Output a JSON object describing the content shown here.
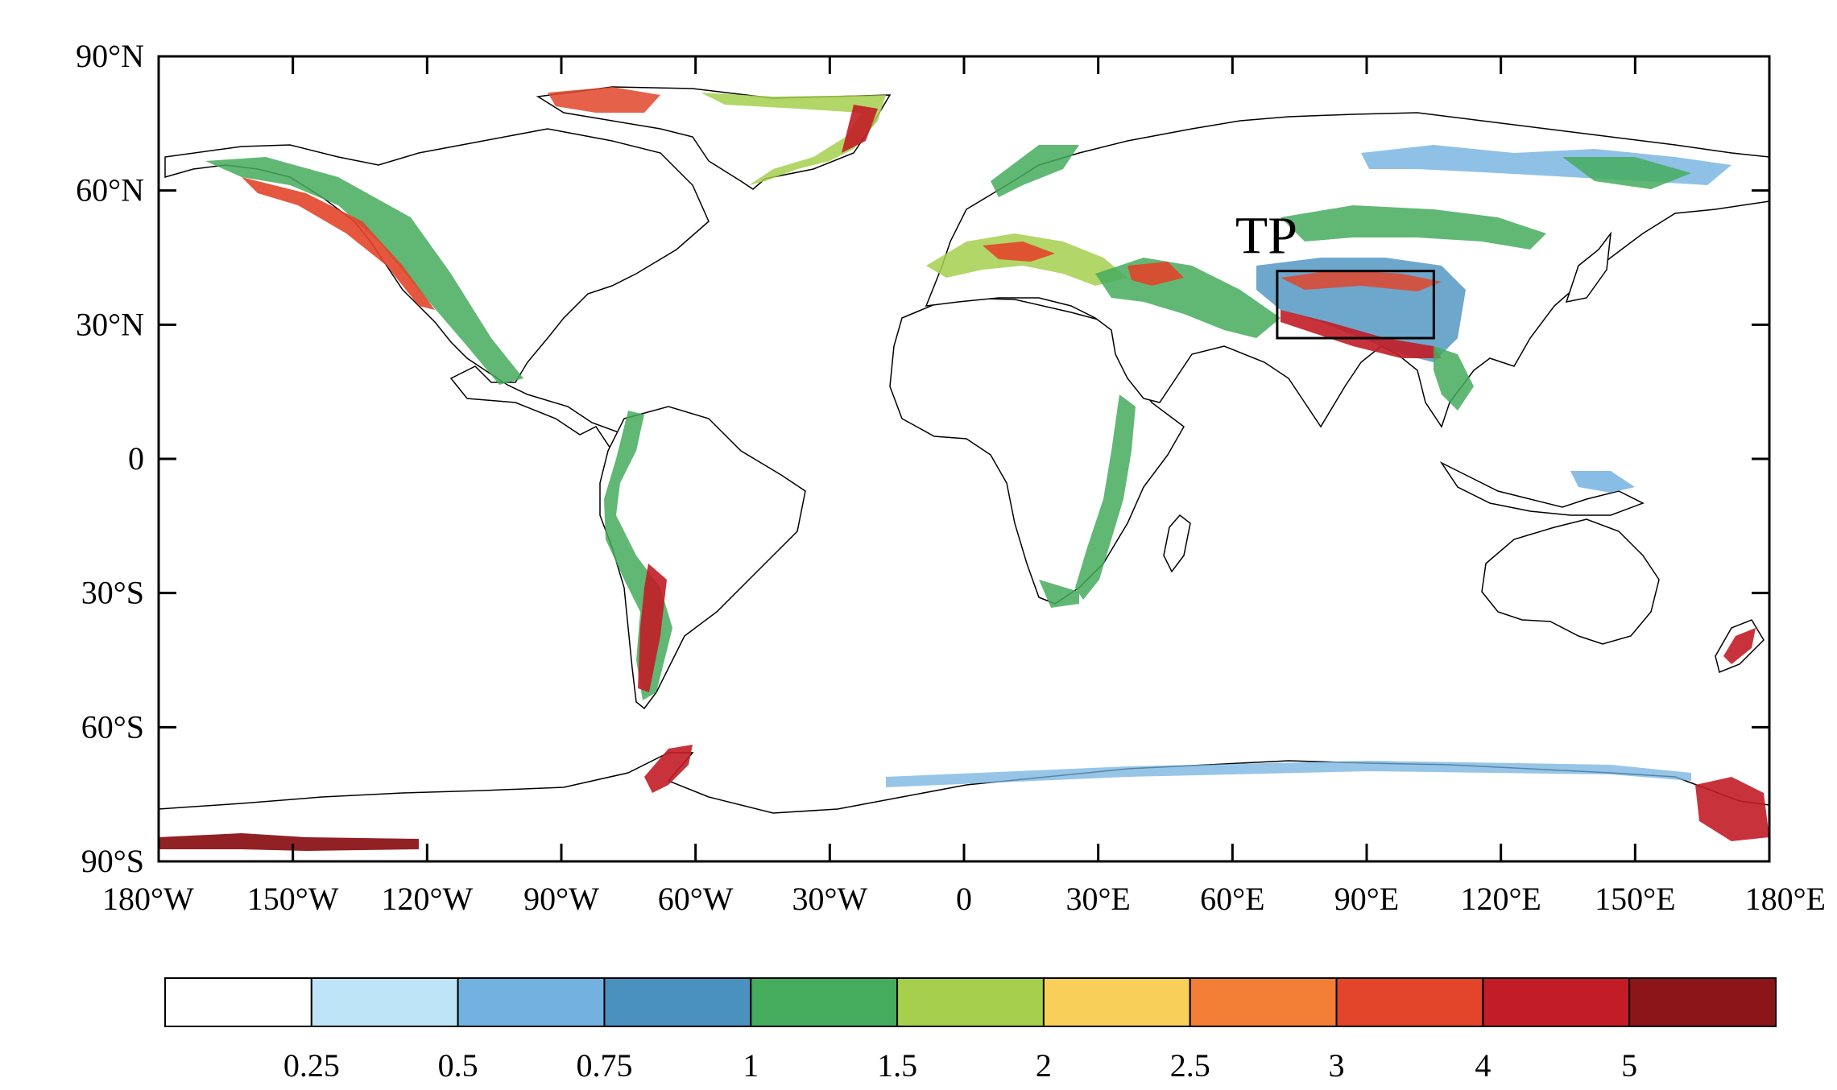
{
  "map": {
    "lat_labels": [
      "90°N",
      "60°N",
      "30°N",
      "0",
      "30°S",
      "60°S",
      "90°S"
    ],
    "lon_labels": [
      "180°W",
      "150°W",
      "120°W",
      "90°W",
      "60°W",
      "30°W",
      "0",
      "30°E",
      "60°E",
      "90°E",
      "120°E",
      "150°E",
      "180°E"
    ],
    "region": {
      "label": "TP",
      "lon_range": [
        70,
        105
      ],
      "lat_range": [
        27,
        42
      ]
    }
  },
  "colorbar": {
    "colors": [
      "#ffffff",
      "#bde4f7",
      "#73b2e0",
      "#4a91bf",
      "#45ab5d",
      "#a6cf4d",
      "#f8cf58",
      "#f37e35",
      "#e2452a",
      "#c21d26",
      "#8c1519"
    ],
    "labels": [
      "0.25",
      "0.5",
      "0.75",
      "1",
      "1.5",
      "2",
      "2.5",
      "3",
      "4",
      "5"
    ]
  }
}
